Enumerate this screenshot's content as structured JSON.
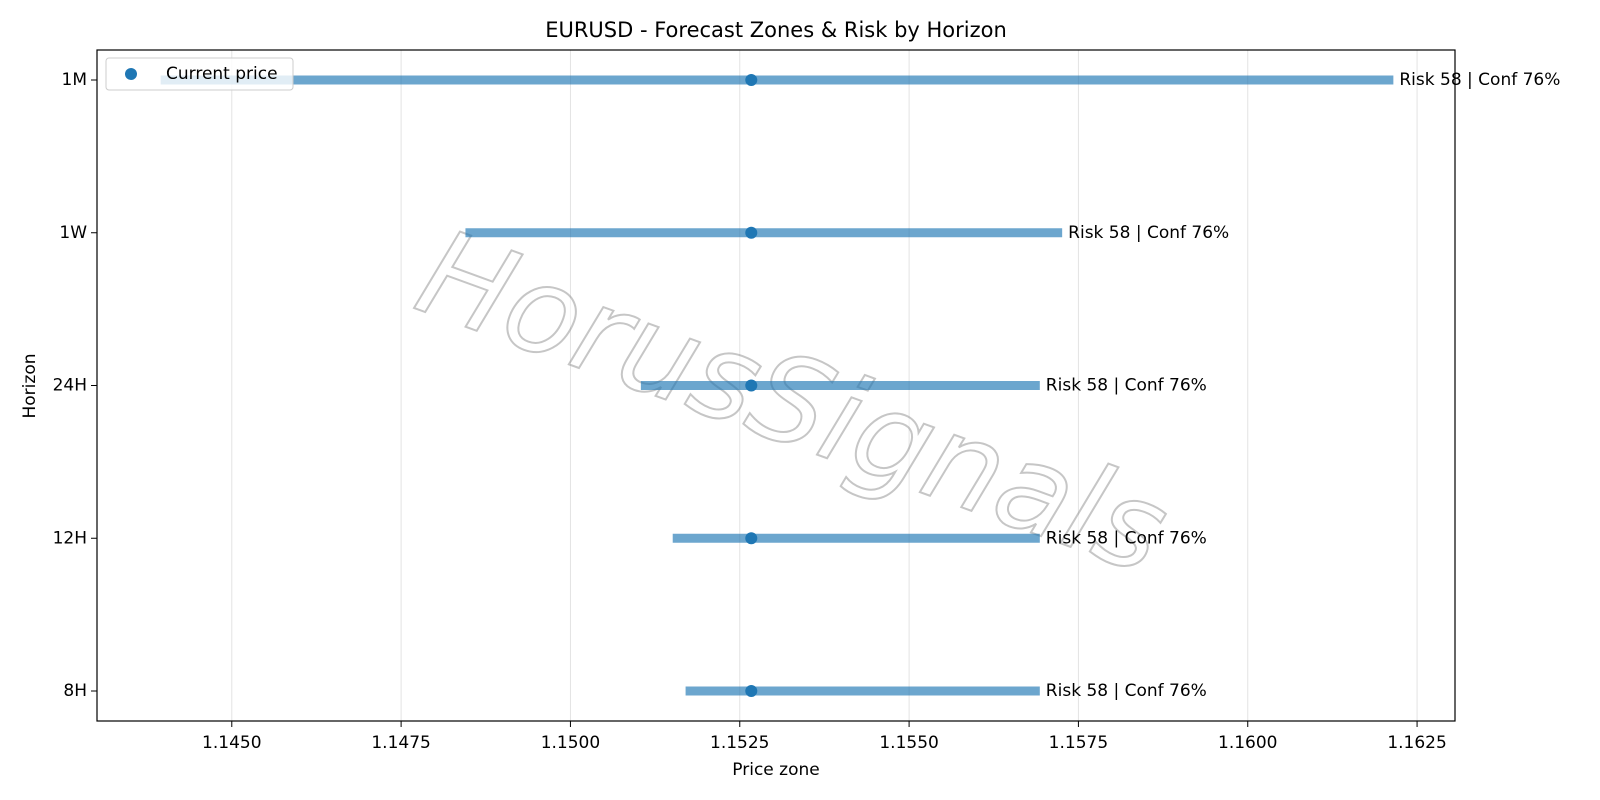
{
  "chart_data": {
    "type": "range",
    "title": "EURUSD - Forecast Zones & Risk by Horizon",
    "xlabel": "Price zone",
    "ylabel": "Horizon",
    "watermark": "HorusSignals",
    "categories": [
      "1M",
      "1W",
      "24H",
      "12H",
      "8H"
    ],
    "low": [
      1.14395,
      1.14845,
      1.15104,
      1.15151,
      1.1517
    ],
    "high": [
      1.16215,
      1.15726,
      1.15693,
      1.15693,
      1.15693
    ],
    "bar_color": "#1f77b4",
    "series": [
      {
        "name": "Current price",
        "color": "#1f77b4",
        "values": [
          1.15267,
          1.15267,
          1.15267,
          1.15267,
          1.15267
        ]
      }
    ],
    "annotations": [
      "Risk 58 | Conf 76%",
      "Risk 58 | Conf 76%",
      "Risk 58 | Conf 76%",
      "Risk 58 | Conf 76%",
      "Risk 58 | Conf 76%"
    ],
    "xlim": [
      1.14301,
      1.16306
    ],
    "xticks": [
      {
        "value": 1.145,
        "label": "1.1450"
      },
      {
        "value": 1.1475,
        "label": "1.1475"
      },
      {
        "value": 1.15,
        "label": "1.1500"
      },
      {
        "value": 1.1525,
        "label": "1.1525"
      },
      {
        "value": 1.155,
        "label": "1.1550"
      },
      {
        "value": 1.1575,
        "label": "1.1575"
      },
      {
        "value": 1.16,
        "label": "1.1600"
      },
      {
        "value": 1.1625,
        "label": "1.1625"
      }
    ],
    "grid": true,
    "legend": "upper left"
  }
}
